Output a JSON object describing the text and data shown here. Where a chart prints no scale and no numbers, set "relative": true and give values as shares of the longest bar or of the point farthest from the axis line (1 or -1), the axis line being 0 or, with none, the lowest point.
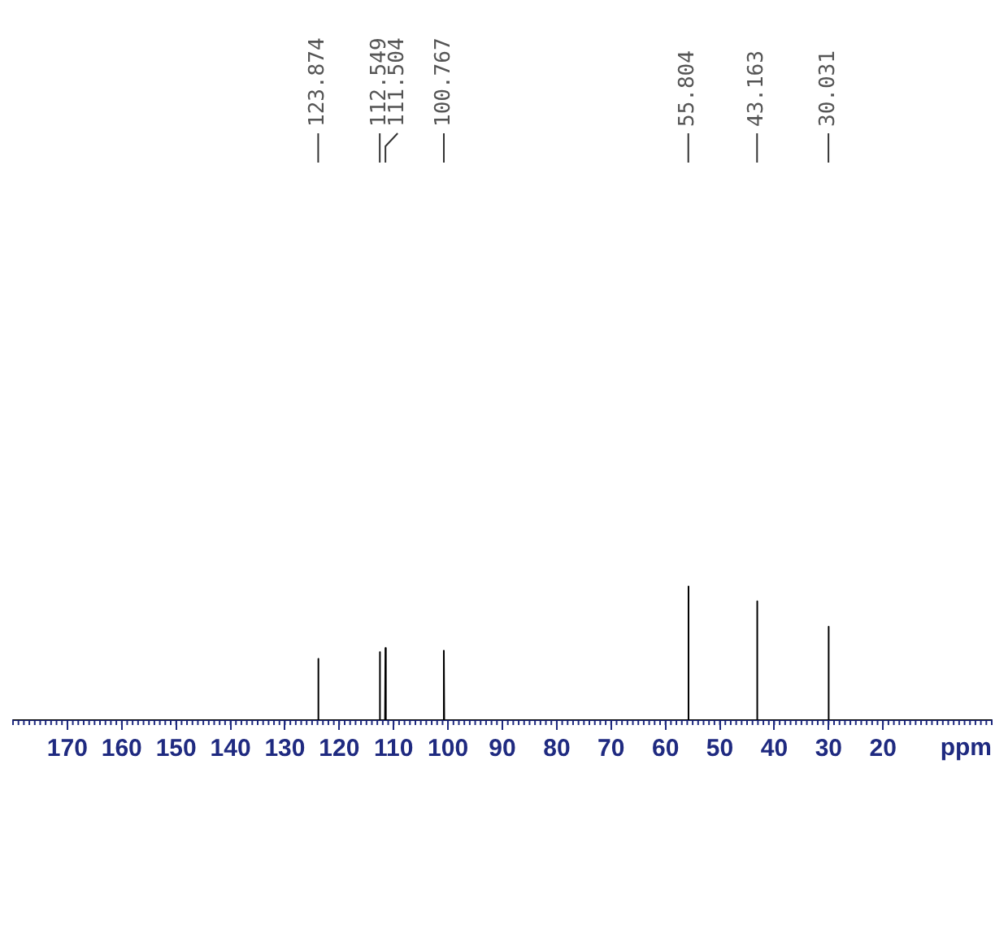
{
  "chart_data": {
    "type": "line",
    "relative": true,
    "xlabel": "ppm",
    "xlim": [
      180,
      0
    ],
    "xticks": [
      170,
      160,
      150,
      140,
      130,
      120,
      110,
      100,
      90,
      80,
      70,
      60,
      50,
      40,
      30,
      20
    ],
    "series": [
      {
        "color": "#000000",
        "x": [
          180,
          123.95,
          123.874,
          123.8,
          112.62,
          112.549,
          112.48,
          111.58,
          111.504,
          111.43,
          100.84,
          100.767,
          100.69,
          55.88,
          55.804,
          55.73,
          43.24,
          43.163,
          43.09,
          30.11,
          30.031,
          29.95,
          0
        ],
        "values": [
          0,
          0,
          0.46,
          0,
          0,
          0.51,
          0,
          0,
          0.54,
          0,
          0,
          0.52,
          0,
          0,
          1,
          0,
          0,
          0.89,
          0,
          0,
          0.7,
          0,
          0
        ]
      }
    ],
    "annotations": [
      "123.874",
      "112.549",
      "111.504",
      "100.767",
      "55.804",
      "43.163",
      "30.031"
    ],
    "grid": false,
    "legend": false
  }
}
